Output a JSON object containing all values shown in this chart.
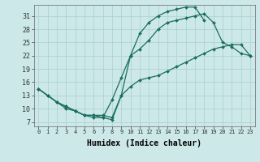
{
  "bg_color": "#cce8e8",
  "grid_color": "#aacfcf",
  "line_color": "#1a6e60",
  "xlabel": "Humidex (Indice chaleur)",
  "xlim": [
    -0.5,
    23.5
  ],
  "ylim": [
    6.0,
    33.5
  ],
  "xticks": [
    0,
    1,
    2,
    3,
    4,
    5,
    6,
    7,
    8,
    9,
    10,
    11,
    12,
    13,
    14,
    15,
    16,
    17,
    18,
    19,
    20,
    21,
    22,
    23
  ],
  "yticks": [
    7,
    10,
    13,
    16,
    19,
    22,
    25,
    28,
    31
  ],
  "line1_x": [
    0,
    1,
    2,
    3,
    4,
    5,
    6,
    7,
    8,
    9,
    10,
    11,
    12,
    13,
    14,
    15,
    16,
    17,
    18,
    19,
    20,
    21,
    22,
    23
  ],
  "line1_y": [
    14.5,
    13.0,
    11.5,
    10.5,
    9.5,
    8.5,
    8.5,
    8.5,
    8.0,
    13.0,
    15.0,
    16.5,
    17.0,
    17.5,
    18.5,
    19.5,
    20.5,
    21.5,
    22.5,
    23.5,
    24.0,
    24.5,
    24.5,
    22.0
  ],
  "line2_x": [
    0,
    1,
    2,
    3,
    4,
    5,
    6,
    7,
    8,
    9,
    10,
    11,
    12,
    13,
    14,
    15,
    16,
    17,
    18
  ],
  "line2_y": [
    14.5,
    13.0,
    11.5,
    10.5,
    9.5,
    8.5,
    8.5,
    8.0,
    7.5,
    13.0,
    22.0,
    27.0,
    29.5,
    31.0,
    32.0,
    32.5,
    33.0,
    33.0,
    30.0
  ],
  "line3_x": [
    0,
    1,
    2,
    3,
    4,
    5,
    6,
    7,
    8,
    9,
    10,
    11,
    12,
    13,
    14,
    15,
    16,
    17,
    18,
    19,
    20,
    21,
    22,
    23
  ],
  "line3_y": [
    14.5,
    13.0,
    11.5,
    10.0,
    9.5,
    8.5,
    8.0,
    8.0,
    12.0,
    17.0,
    22.0,
    23.5,
    25.5,
    28.0,
    29.5,
    30.0,
    30.5,
    31.0,
    31.5,
    29.5,
    25.0,
    24.0,
    22.5,
    22.0
  ]
}
